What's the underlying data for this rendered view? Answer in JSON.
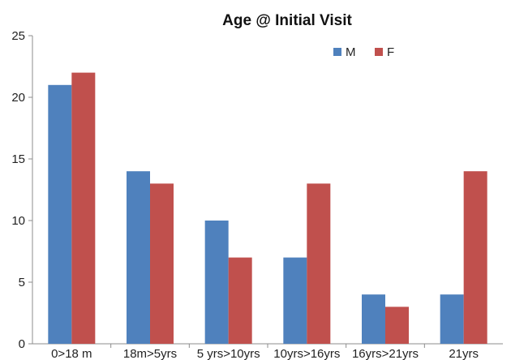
{
  "chart_data": {
    "type": "bar",
    "title": "Age @ Initial Visit",
    "xlabel": "",
    "ylabel": "",
    "ylim": [
      0,
      25
    ],
    "yticks": [
      0,
      5,
      10,
      15,
      20,
      25
    ],
    "grid": false,
    "legend_position": "top-right",
    "categories": [
      "0>18 m",
      "18m>5yrs",
      "5 yrs>10yrs",
      "10yrs>16yrs",
      "16yrs>21yrs",
      "21yrs"
    ],
    "series": [
      {
        "name": "M",
        "color": "#4f81bd",
        "values": [
          21,
          14,
          10,
          7,
          4,
          4
        ]
      },
      {
        "name": "F",
        "color": "#c0504d",
        "values": [
          22,
          13,
          7,
          13,
          3,
          14
        ]
      }
    ]
  }
}
